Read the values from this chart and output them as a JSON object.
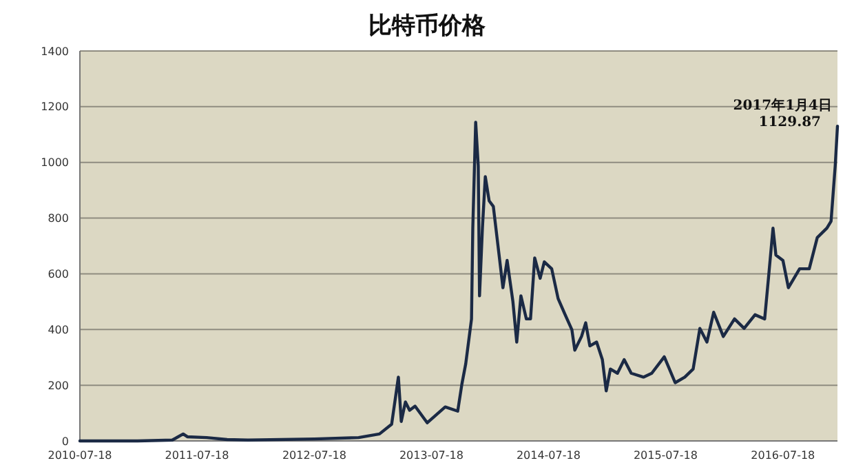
{
  "chart_data": {
    "type": "line",
    "title": "比特币价格",
    "x": [
      "2010-07-18",
      "2011-01-14",
      "2011-05-02",
      "2011-06-05",
      "2011-06-18",
      "2011-08-17",
      "2011-10-20",
      "2011-12-24",
      "2012-07-18",
      "2012-12-03",
      "2013-02-06",
      "2013-03-16",
      "2013-04-06",
      "2013-04-15",
      "2013-04-28",
      "2013-05-11",
      "2013-05-28",
      "2013-07-05",
      "2013-08-30",
      "2013-10-08",
      "2013-10-21",
      "2013-11-02",
      "2013-11-20",
      "2013-11-24",
      "2013-12-03",
      "2013-12-11",
      "2013-12-15",
      "2013-12-24",
      "2014-01-02",
      "2014-01-14",
      "2014-01-27",
      "2014-02-14",
      "2014-02-26",
      "2014-03-11",
      "2014-03-29",
      "2014-04-10",
      "2014-04-23",
      "2014-05-10",
      "2014-05-23",
      "2014-06-05",
      "2014-06-22",
      "2014-07-05",
      "2014-07-28",
      "2014-08-17",
      "2014-09-08",
      "2014-09-29",
      "2014-10-08",
      "2014-10-29",
      "2014-11-11",
      "2014-11-24",
      "2014-12-15",
      "2015-01-02",
      "2015-01-14",
      "2015-01-27",
      "2015-02-18",
      "2015-03-11",
      "2015-04-02",
      "2015-05-10",
      "2015-06-05",
      "2015-07-14",
      "2015-08-17",
      "2015-09-16",
      "2015-10-12",
      "2015-11-02",
      "2015-11-24",
      "2015-12-15",
      "2016-01-14",
      "2016-02-18",
      "2016-03-19",
      "2016-04-22",
      "2016-05-22",
      "2016-06-04",
      "2016-06-17",
      "2016-06-26",
      "2016-07-18",
      "2016-08-04",
      "2016-09-08",
      "2016-10-08",
      "2016-11-02",
      "2016-12-02",
      "2016-12-15",
      "2016-12-28",
      "2017-01-04"
    ],
    "series": [
      {
        "color": "#1b2a45",
        "values": [
          0,
          0,
          3,
          25,
          15,
          12,
          5,
          3,
          7,
          12,
          25,
          60,
          229,
          70,
          140,
          110,
          125,
          65,
          122,
          107,
          204,
          277,
          438,
          764,
          1144,
          988,
          521,
          764,
          949,
          862,
          842,
          667,
          550,
          648,
          501,
          355,
          521,
          438,
          438,
          657,
          584,
          643,
          618,
          511,
          453,
          399,
          326,
          375,
          424,
          341,
          355,
          292,
          180,
          258,
          243,
          292,
          243,
          229,
          243,
          302,
          209,
          229,
          258,
          404,
          355,
          462,
          375,
          438,
          404,
          453,
          438,
          599,
          764,
          667,
          648,
          550,
          618,
          618,
          730,
          764,
          789,
          988,
          1129.87
        ]
      }
    ],
    "xlim": [
      "2010-07-18",
      "2017-01-04"
    ],
    "xticks": [
      "2010-07-18",
      "2011-07-18",
      "2012-07-18",
      "2013-07-18",
      "2014-07-18",
      "2015-07-18",
      "2016-07-18"
    ],
    "ylim": [
      0,
      1400
    ],
    "yticks": [
      0,
      200,
      400,
      600,
      800,
      1000,
      1200,
      1400
    ],
    "grid": "y",
    "marker": "none",
    "line_style": "solid",
    "annotations": [
      {
        "text": "2017年1月4日\n1129.87",
        "x": "2017-01-04",
        "y": 1129.87
      }
    ]
  }
}
